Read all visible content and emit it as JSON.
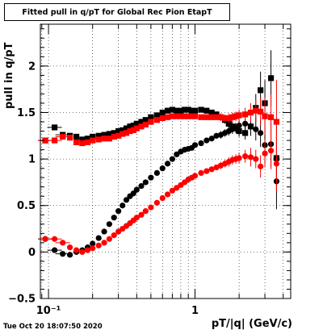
{
  "timestamp": "Tue Oct 20 18:07:50 2020",
  "colors": {
    "series_black": "#000000",
    "series_red": "#ff0000",
    "grid": "#000000"
  },
  "chart_data": {
    "type": "scatter",
    "title": "Fitted pull in q/pT for Global Rec Pion EtapT",
    "xlabel": "pT/|q| (GeV/c)",
    "ylabel": "pull in q/pT",
    "x_scale": "log",
    "xlim": [
      0.088,
      4.5
    ],
    "ylim": [
      -0.5,
      2.45
    ],
    "x_ticks": [
      {
        "value": 0.1,
        "label": "10⁻¹"
      },
      {
        "value": 1,
        "label": "1"
      }
    ],
    "y_ticks": [
      -0.5,
      0,
      0.5,
      1,
      1.5,
      2
    ],
    "grid": true,
    "legend": "none",
    "series": [
      {
        "values": [
          [
            0.095,
            1.2
          ],
          [
            0.11,
            1.34
          ],
          [
            0.125,
            1.26
          ],
          [
            0.14,
            1.25
          ],
          [
            0.155,
            1.24
          ],
          [
            0.17,
            1.21
          ],
          [
            0.185,
            1.22
          ],
          [
            0.2,
            1.24
          ],
          [
            0.22,
            1.25
          ],
          [
            0.24,
            1.26
          ],
          [
            0.26,
            1.27
          ],
          [
            0.28,
            1.28
          ],
          [
            0.3,
            1.3
          ],
          [
            0.32,
            1.31
          ],
          [
            0.34,
            1.33
          ],
          [
            0.36,
            1.35
          ],
          [
            0.38,
            1.36
          ],
          [
            0.4,
            1.38
          ],
          [
            0.43,
            1.4
          ],
          [
            0.46,
            1.42
          ],
          [
            0.5,
            1.45
          ],
          [
            0.55,
            1.47
          ],
          [
            0.6,
            1.5
          ],
          [
            0.65,
            1.52
          ],
          [
            0.7,
            1.53
          ],
          [
            0.75,
            1.52
          ],
          [
            0.8,
            1.52
          ],
          [
            0.85,
            1.53
          ],
          [
            0.9,
            1.53
          ],
          [
            0.95,
            1.52
          ],
          [
            1.0,
            1.52
          ],
          [
            1.1,
            1.53
          ],
          [
            1.2,
            1.52
          ],
          [
            1.3,
            1.5
          ],
          [
            1.4,
            1.48
          ],
          [
            1.5,
            1.45
          ],
          [
            1.6,
            1.42
          ],
          [
            1.7,
            1.38
          ],
          [
            1.8,
            1.35
          ],
          [
            1.9,
            1.33
          ],
          [
            2.0,
            1.3
          ],
          [
            2.2,
            1.28
          ],
          [
            2.4,
            1.35
          ],
          [
            2.6,
            1.55
          ],
          [
            2.8,
            1.74
          ],
          [
            3.0,
            1.6
          ],
          [
            3.3,
            1.87
          ],
          [
            3.6,
            1.01
          ]
        ],
        "errors": [
          0.02,
          0.02,
          0.015,
          0.015,
          0.015,
          0.015,
          0.015,
          0.015,
          0.015,
          0.015,
          0.015,
          0.015,
          0.015,
          0.015,
          0.015,
          0.015,
          0.015,
          0.015,
          0.015,
          0.015,
          0.015,
          0.015,
          0.015,
          0.015,
          0.015,
          0.015,
          0.015,
          0.015,
          0.02,
          0.02,
          0.02,
          0.02,
          0.03,
          0.03,
          0.03,
          0.04,
          0.04,
          0.05,
          0.05,
          0.05,
          0.06,
          0.07,
          0.1,
          0.15,
          0.2,
          0.25,
          0.3,
          0.35
        ]
      },
      {
        "values": [
          [
            0.095,
            0.14
          ],
          [
            0.11,
            0.02
          ],
          [
            0.125,
            -0.02
          ],
          [
            0.14,
            -0.03
          ],
          [
            0.155,
            0.0
          ],
          [
            0.17,
            0.02
          ],
          [
            0.185,
            0.05
          ],
          [
            0.2,
            0.09
          ],
          [
            0.22,
            0.15
          ],
          [
            0.24,
            0.22
          ],
          [
            0.26,
            0.3
          ],
          [
            0.28,
            0.37
          ],
          [
            0.3,
            0.44
          ],
          [
            0.32,
            0.5
          ],
          [
            0.34,
            0.56
          ],
          [
            0.36,
            0.6
          ],
          [
            0.38,
            0.63
          ],
          [
            0.4,
            0.67
          ],
          [
            0.43,
            0.71
          ],
          [
            0.46,
            0.75
          ],
          [
            0.5,
            0.8
          ],
          [
            0.55,
            0.85
          ],
          [
            0.6,
            0.9
          ],
          [
            0.65,
            0.95
          ],
          [
            0.7,
            1.0
          ],
          [
            0.75,
            1.05
          ],
          [
            0.8,
            1.08
          ],
          [
            0.85,
            1.1
          ],
          [
            0.9,
            1.11
          ],
          [
            0.95,
            1.12
          ],
          [
            1.0,
            1.15
          ],
          [
            1.1,
            1.17
          ],
          [
            1.2,
            1.2
          ],
          [
            1.3,
            1.22
          ],
          [
            1.4,
            1.25
          ],
          [
            1.5,
            1.26
          ],
          [
            1.6,
            1.28
          ],
          [
            1.7,
            1.3
          ],
          [
            1.8,
            1.32
          ],
          [
            1.9,
            1.34
          ],
          [
            2.0,
            1.36
          ],
          [
            2.2,
            1.38
          ],
          [
            2.4,
            1.35
          ],
          [
            2.6,
            1.32
          ],
          [
            2.8,
            1.28
          ],
          [
            3.0,
            1.15
          ],
          [
            3.3,
            1.16
          ],
          [
            3.6,
            0.76
          ]
        ],
        "errors": [
          0.02,
          0.02,
          0.015,
          0.015,
          0.015,
          0.015,
          0.015,
          0.015,
          0.015,
          0.015,
          0.015,
          0.015,
          0.015,
          0.015,
          0.015,
          0.015,
          0.015,
          0.015,
          0.015,
          0.015,
          0.015,
          0.015,
          0.015,
          0.015,
          0.015,
          0.015,
          0.015,
          0.015,
          0.02,
          0.02,
          0.02,
          0.02,
          0.03,
          0.03,
          0.03,
          0.04,
          0.04,
          0.05,
          0.05,
          0.05,
          0.06,
          0.07,
          0.1,
          0.12,
          0.15,
          0.2,
          0.25,
          0.3
        ],
        "marker": "circle"
      },
      {
        "values": [
          [
            0.095,
            1.2
          ],
          [
            0.11,
            1.2
          ],
          [
            0.125,
            1.24
          ],
          [
            0.14,
            1.23
          ],
          [
            0.155,
            1.18
          ],
          [
            0.17,
            1.17
          ],
          [
            0.185,
            1.18
          ],
          [
            0.2,
            1.2
          ],
          [
            0.22,
            1.21
          ],
          [
            0.24,
            1.22
          ],
          [
            0.26,
            1.22
          ],
          [
            0.28,
            1.24
          ],
          [
            0.3,
            1.25
          ],
          [
            0.32,
            1.27
          ],
          [
            0.34,
            1.28
          ],
          [
            0.36,
            1.3
          ],
          [
            0.38,
            1.31
          ],
          [
            0.4,
            1.33
          ],
          [
            0.43,
            1.35
          ],
          [
            0.46,
            1.37
          ],
          [
            0.5,
            1.4
          ],
          [
            0.55,
            1.42
          ],
          [
            0.6,
            1.44
          ],
          [
            0.65,
            1.45
          ],
          [
            0.7,
            1.46
          ],
          [
            0.75,
            1.46
          ],
          [
            0.8,
            1.46
          ],
          [
            0.85,
            1.46
          ],
          [
            0.9,
            1.46
          ],
          [
            0.95,
            1.46
          ],
          [
            1.0,
            1.46
          ],
          [
            1.1,
            1.45
          ],
          [
            1.2,
            1.45
          ],
          [
            1.3,
            1.45
          ],
          [
            1.4,
            1.45
          ],
          [
            1.5,
            1.45
          ],
          [
            1.6,
            1.44
          ],
          [
            1.7,
            1.44
          ],
          [
            1.8,
            1.45
          ],
          [
            1.9,
            1.46
          ],
          [
            2.0,
            1.47
          ],
          [
            2.2,
            1.48
          ],
          [
            2.4,
            1.5
          ],
          [
            2.6,
            1.52
          ],
          [
            2.8,
            1.51
          ],
          [
            3.0,
            1.46
          ],
          [
            3.3,
            1.45
          ],
          [
            3.6,
            1.4
          ]
        ],
        "errors": [
          0.02,
          0.02,
          0.015,
          0.015,
          0.015,
          0.015,
          0.015,
          0.015,
          0.015,
          0.015,
          0.015,
          0.015,
          0.015,
          0.015,
          0.015,
          0.015,
          0.015,
          0.015,
          0.015,
          0.015,
          0.015,
          0.015,
          0.015,
          0.015,
          0.015,
          0.015,
          0.015,
          0.015,
          0.02,
          0.02,
          0.02,
          0.02,
          0.03,
          0.03,
          0.03,
          0.04,
          0.04,
          0.05,
          0.05,
          0.05,
          0.06,
          0.07,
          0.1,
          0.12,
          0.15,
          0.2,
          0.25,
          0.45
        ]
      },
      {
        "values": [
          [
            0.095,
            0.14
          ],
          [
            0.11,
            0.14
          ],
          [
            0.125,
            0.1
          ],
          [
            0.14,
            0.05
          ],
          [
            0.155,
            0.02
          ],
          [
            0.17,
            0.0
          ],
          [
            0.185,
            0.02
          ],
          [
            0.2,
            0.04
          ],
          [
            0.22,
            0.07
          ],
          [
            0.24,
            0.1
          ],
          [
            0.26,
            0.14
          ],
          [
            0.28,
            0.18
          ],
          [
            0.3,
            0.22
          ],
          [
            0.32,
            0.25
          ],
          [
            0.34,
            0.28
          ],
          [
            0.36,
            0.31
          ],
          [
            0.38,
            0.34
          ],
          [
            0.4,
            0.37
          ],
          [
            0.43,
            0.4
          ],
          [
            0.46,
            0.44
          ],
          [
            0.5,
            0.48
          ],
          [
            0.55,
            0.53
          ],
          [
            0.6,
            0.58
          ],
          [
            0.65,
            0.62
          ],
          [
            0.7,
            0.66
          ],
          [
            0.75,
            0.69
          ],
          [
            0.8,
            0.72
          ],
          [
            0.85,
            0.75
          ],
          [
            0.9,
            0.78
          ],
          [
            0.95,
            0.8
          ],
          [
            1.0,
            0.82
          ],
          [
            1.1,
            0.85
          ],
          [
            1.2,
            0.87
          ],
          [
            1.3,
            0.89
          ],
          [
            1.4,
            0.91
          ],
          [
            1.5,
            0.93
          ],
          [
            1.6,
            0.95
          ],
          [
            1.7,
            0.97
          ],
          [
            1.8,
            0.99
          ],
          [
            1.9,
            1.0
          ],
          [
            2.0,
            1.01
          ],
          [
            2.2,
            1.03
          ],
          [
            2.4,
            1.02
          ],
          [
            2.6,
            1.0
          ],
          [
            2.8,
            0.92
          ],
          [
            3.0,
            1.06
          ],
          [
            3.3,
            1.09
          ],
          [
            3.6,
            0.95
          ]
        ],
        "errors": [
          0.02,
          0.02,
          0.015,
          0.015,
          0.015,
          0.015,
          0.015,
          0.015,
          0.015,
          0.015,
          0.015,
          0.015,
          0.015,
          0.015,
          0.015,
          0.015,
          0.015,
          0.015,
          0.015,
          0.015,
          0.015,
          0.015,
          0.015,
          0.015,
          0.015,
          0.015,
          0.015,
          0.015,
          0.02,
          0.02,
          0.02,
          0.02,
          0.03,
          0.03,
          0.03,
          0.04,
          0.04,
          0.05,
          0.05,
          0.05,
          0.06,
          0.07,
          0.1,
          0.1,
          0.12,
          0.15,
          0.2,
          0.3
        ],
        "marker": "circle"
      }
    ]
  }
}
